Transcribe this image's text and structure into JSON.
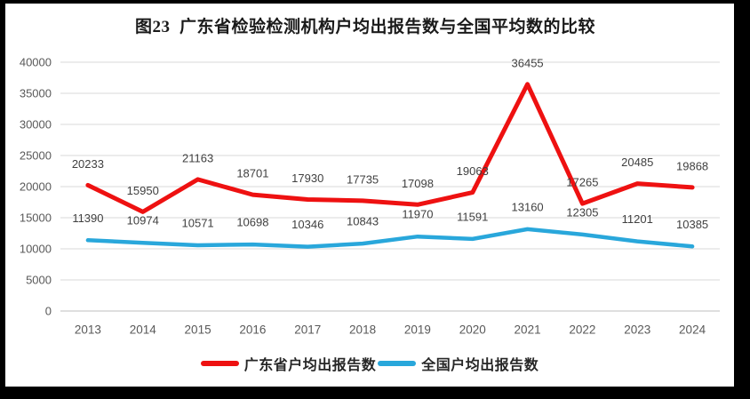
{
  "frame": {
    "background": "#000000",
    "content_background": "#ffffff"
  },
  "chart_data": {
    "type": "line",
    "title": "图23  广东省检验检测机构户均出报告数与全国平均数的比较",
    "categories": [
      "2013",
      "2014",
      "2015",
      "2016",
      "2017",
      "2018",
      "2019",
      "2020",
      "2021",
      "2022",
      "2023",
      "2024"
    ],
    "series": [
      {
        "name": "广东省户均出报告数",
        "color": "#ee1111",
        "line_width": 5,
        "values": [
          20233,
          15950,
          21163,
          18701,
          17930,
          17735,
          17098,
          19063,
          36455,
          17265,
          20485,
          19868
        ]
      },
      {
        "name": "全国户均出报告数",
        "color": "#29a7db",
        "line_width": 4.5,
        "values": [
          11390,
          10974,
          10571,
          10698,
          10346,
          10843,
          11970,
          11591,
          13160,
          12305,
          11201,
          10385
        ]
      }
    ],
    "ylim": [
      0,
      40000
    ],
    "ytick_step": 5000,
    "yticks": [
      "0",
      "5000",
      "10000",
      "15000",
      "20000",
      "25000",
      "30000",
      "35000",
      "40000"
    ],
    "grid": true,
    "data_labels": true,
    "legend_position": "bottom"
  },
  "styles": {
    "grid_color": "#d9d9d9",
    "axis_line_color": "#bfbfbf",
    "tick_label_color": "#595959",
    "data_label_color": "#404040",
    "title_color": "#1a1a1a",
    "legend_text_color": "#262626"
  }
}
